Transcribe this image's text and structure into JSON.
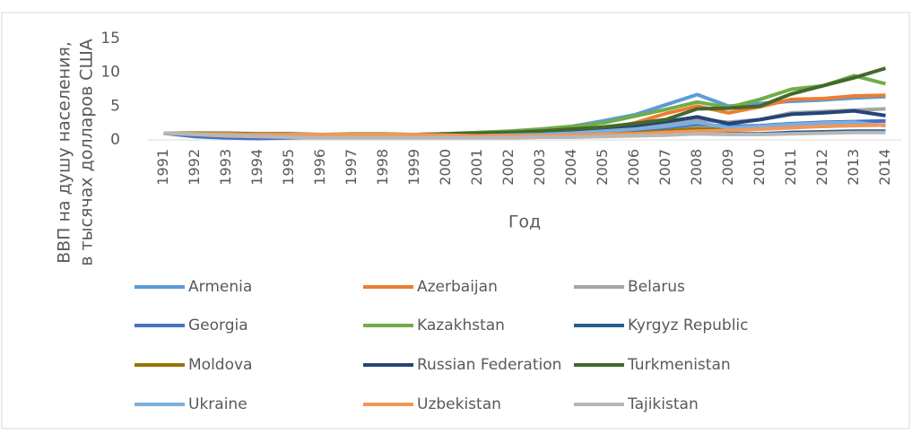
{
  "chart_data": {
    "type": "line",
    "y_label": [
      "ВВП на душу населения,",
      "в тысячах долларов США"
    ],
    "x_label": "Год",
    "categories": [
      "1991",
      "1992",
      "1993",
      "1994",
      "1995",
      "1996",
      "1997",
      "1998",
      "1999",
      "2000",
      "2001",
      "2002",
      "2003",
      "2004",
      "2005",
      "2006",
      "2007",
      "2008",
      "2009",
      "2010",
      "2011",
      "2012",
      "2013",
      "2014"
    ],
    "ylim": [
      0,
      15
    ],
    "yticks": [
      0,
      5,
      10,
      15
    ],
    "grid": false,
    "series": [
      {
        "name": "Armenia",
        "color": "#5b9bd5",
        "values": [
          1.0,
          0.7,
          0.6,
          0.6,
          0.6,
          0.6,
          0.7,
          0.7,
          0.7,
          0.8,
          0.9,
          1.1,
          1.4,
          2.0,
          2.8,
          3.7,
          5.2,
          6.7,
          5.0,
          5.4,
          5.7,
          5.9,
          6.2,
          6.4
        ]
      },
      {
        "name": "Azerbaijan",
        "color": "#ed7d31",
        "values": [
          1.0,
          0.9,
          0.8,
          0.7,
          0.7,
          0.7,
          0.8,
          0.8,
          0.8,
          0.8,
          0.8,
          0.9,
          1.0,
          1.2,
          1.6,
          2.5,
          3.9,
          5.0,
          4.0,
          4.9,
          6.0,
          6.1,
          6.5,
          6.6
        ]
      },
      {
        "name": "Belarus",
        "color": "#a5a5a5",
        "values": [
          1.0,
          0.9,
          0.8,
          0.7,
          0.7,
          0.7,
          0.7,
          0.8,
          0.7,
          0.7,
          0.7,
          0.8,
          0.9,
          1.1,
          1.4,
          1.8,
          2.3,
          3.0,
          2.6,
          3.0,
          4.0,
          4.2,
          4.4,
          4.6
        ]
      },
      {
        "name": "Georgia",
        "color": "#4472c4",
        "values": [
          1.0,
          0.5,
          0.3,
          0.2,
          0.3,
          0.4,
          0.5,
          0.5,
          0.5,
          0.5,
          0.6,
          0.6,
          0.7,
          0.9,
          1.1,
          1.4,
          1.8,
          2.3,
          2.0,
          2.1,
          2.4,
          2.6,
          2.7,
          2.8
        ]
      },
      {
        "name": "Kazakhstan",
        "color": "#70ad47",
        "values": [
          1.0,
          0.9,
          0.8,
          0.7,
          0.7,
          0.8,
          0.9,
          0.9,
          0.8,
          0.9,
          1.1,
          1.3,
          1.6,
          2.0,
          2.5,
          3.5,
          4.5,
          5.6,
          4.8,
          6.0,
          7.5,
          8.0,
          9.5,
          8.3
        ]
      },
      {
        "name": "Kyrgyz Republic",
        "color": "#255e91",
        "values": [
          1.0,
          0.8,
          0.6,
          0.5,
          0.5,
          0.5,
          0.5,
          0.5,
          0.4,
          0.4,
          0.4,
          0.4,
          0.5,
          0.5,
          0.6,
          0.7,
          0.8,
          1.0,
          0.9,
          0.9,
          1.1,
          1.2,
          1.3,
          1.3
        ]
      },
      {
        "name": "Moldova",
        "color": "#997300",
        "values": [
          1.0,
          0.9,
          0.8,
          0.6,
          0.6,
          0.6,
          0.6,
          0.5,
          0.4,
          0.4,
          0.4,
          0.5,
          0.6,
          0.8,
          0.9,
          1.0,
          1.3,
          1.7,
          1.5,
          1.7,
          2.0,
          2.0,
          2.2,
          2.2
        ]
      },
      {
        "name": "Russian Federation",
        "color": "#264478",
        "values": [
          1.0,
          0.9,
          0.8,
          0.7,
          0.7,
          0.8,
          0.8,
          0.7,
          0.6,
          0.7,
          0.8,
          0.9,
          1.1,
          1.4,
          1.7,
          2.1,
          2.7,
          3.4,
          2.4,
          3.0,
          3.8,
          4.0,
          4.3,
          3.6
        ]
      },
      {
        "name": "Turkmenistan",
        "color": "#43682b",
        "values": [
          1.0,
          1.0,
          1.0,
          0.9,
          0.9,
          0.8,
          0.8,
          0.8,
          0.8,
          0.9,
          1.0,
          1.1,
          1.3,
          1.6,
          1.9,
          2.4,
          3.0,
          4.6,
          4.7,
          5.0,
          6.8,
          8.0,
          9.2,
          10.6
        ]
      },
      {
        "name": "Ukraine",
        "color": "#7cafdd",
        "values": [
          1.0,
          0.9,
          0.8,
          0.7,
          0.7,
          0.7,
          0.7,
          0.7,
          0.6,
          0.6,
          0.6,
          0.7,
          0.8,
          1.0,
          1.3,
          1.6,
          2.0,
          2.6,
          1.8,
          2.0,
          2.3,
          2.5,
          2.6,
          2.1
        ]
      },
      {
        "name": "Uzbekistan",
        "color": "#f1975a",
        "values": [
          1.0,
          0.9,
          0.9,
          0.8,
          0.8,
          0.8,
          0.8,
          0.8,
          0.8,
          0.7,
          0.6,
          0.6,
          0.6,
          0.7,
          0.8,
          0.9,
          1.1,
          1.3,
          1.4,
          1.6,
          1.8,
          2.0,
          2.1,
          2.2
        ]
      },
      {
        "name": "Tajikistan",
        "color": "#b7b7b7",
        "values": [
          1.0,
          0.8,
          0.6,
          0.5,
          0.4,
          0.3,
          0.3,
          0.3,
          0.3,
          0.3,
          0.3,
          0.3,
          0.4,
          0.4,
          0.5,
          0.6,
          0.7,
          0.9,
          0.8,
          0.8,
          0.9,
          1.0,
          1.1,
          1.1
        ]
      }
    ]
  }
}
